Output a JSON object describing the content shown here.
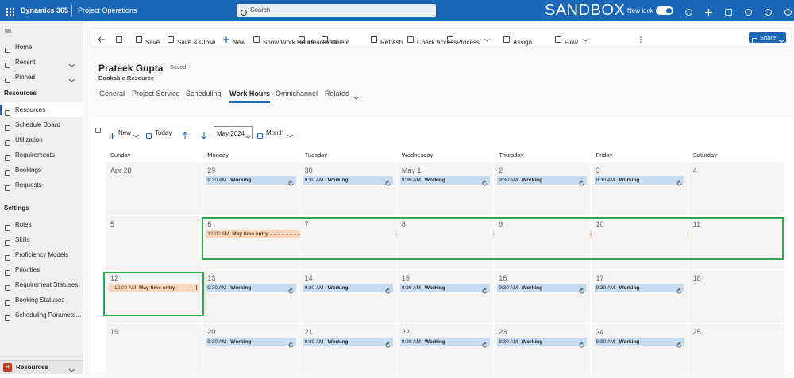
{
  "top_bar": {
    "app": "Dynamics 365",
    "area": "Project Operations",
    "search": "Search",
    "environment": "SANDBOX",
    "new_look": "New look"
  },
  "nav": {
    "items": [
      "Home",
      "Recent",
      "Pinned"
    ],
    "sections": [
      {
        "title": "Resources",
        "items": [
          "Resources",
          "Schedule Board",
          "Utilization",
          "Requirements",
          "Bookings",
          "Requests"
        ]
      },
      {
        "title": "Settings",
        "items": [
          "Roles",
          "Skills",
          "Proficiency Models",
          "Priorities",
          "Requirement Statuses",
          "Booking Statuses",
          "Scheduling Paramete..."
        ]
      }
    ],
    "area_switcher": {
      "badge": "R",
      "label": "Resources"
    }
  },
  "command_bar": {
    "items": [
      "Save",
      "Save & Close",
      "New",
      "Show Work Hours",
      "Deactivate",
      "Delete",
      "Refresh",
      "Check Access",
      "Process",
      "Assign",
      "Flow"
    ],
    "share": "Share"
  },
  "record": {
    "name": "Prateek Gupta",
    "status": "- Saved",
    "entity": "Bookable Resource",
    "tabs": [
      "General",
      "Project Service",
      "Scheduling",
      "Work Hours",
      "Omnichannel",
      "Related"
    ]
  },
  "calendar": {
    "toolbar": {
      "new": "New",
      "today": "Today",
      "period": "May 2024",
      "view": "Month"
    },
    "weekdays": [
      "Sunday",
      "Monday",
      "Tuesday",
      "Wednesday",
      "Thursday",
      "Friday",
      "Saturday"
    ],
    "weeks": [
      [
        {
          "date": "Apr 28",
          "entries": []
        },
        {
          "date": "29",
          "entries": [
            {
              "time": "9:30 AM",
              "title": "Working",
              "days": 1
            }
          ]
        },
        {
          "date": "30",
          "entries": [
            {
              "time": "9:30 AM",
              "title": "Working",
              "days": 1
            }
          ]
        },
        {
          "date": "May 1",
          "entries": [
            {
              "time": "9:30 AM",
              "title": "Working",
              "days": 1
            }
          ]
        },
        {
          "date": "2",
          "entries": [
            {
              "time": "9:30 AM",
              "title": "Working",
              "days": 1
            }
          ]
        },
        {
          "date": "3",
          "entries": [
            {
              "time": "9:30 AM",
              "title": "Working",
              "days": 1
            }
          ]
        },
        {
          "date": "4",
          "entries": []
        }
      ],
      [
        {
          "date": "5",
          "entries": []
        },
        {
          "date": "6",
          "entries": [
            {
              "time": "12:00 AM",
              "title": "May time entry",
              "days": 6
            }
          ]
        },
        {
          "date": "7",
          "entries": []
        },
        {
          "date": "8",
          "entries": []
        },
        {
          "date": "9",
          "entries": []
        },
        {
          "date": "10",
          "entries": []
        },
        {
          "date": "11",
          "entries": []
        }
      ],
      [
        {
          "date": "12",
          "entries": [
            {
              "time": "12:00 AM",
              "title": "May time entry",
              "days": 1
            }
          ]
        },
        {
          "date": "13",
          "entries": [
            {
              "time": "9:30 AM",
              "title": "Working",
              "days": 1
            }
          ]
        },
        {
          "date": "14",
          "entries": [
            {
              "time": "9:30 AM",
              "title": "Working",
              "days": 1
            }
          ]
        },
        {
          "date": "15",
          "entries": [
            {
              "time": "9:30 AM",
              "title": "Working",
              "days": 1
            }
          ]
        },
        {
          "date": "16",
          "entries": [
            {
              "time": "9:30 AM",
              "title": "Working",
              "days": 1
            }
          ]
        },
        {
          "date": "17",
          "entries": [
            {
              "time": "9:30 AM",
              "title": "Working",
              "days": 1
            }
          ]
        },
        {
          "date": "18",
          "entries": []
        }
      ],
      [
        {
          "date": "19",
          "entries": []
        },
        {
          "date": "20",
          "entries": [
            {
              "time": "9:30 AM",
              "title": "Working",
              "days": 1
            }
          ]
        },
        {
          "date": "21",
          "entries": [
            {
              "time": "9:30 AM",
              "title": "Working",
              "days": 1
            }
          ]
        },
        {
          "date": "22",
          "entries": [
            {
              "time": "9:30 AM",
              "title": "Working",
              "days": 1
            }
          ]
        },
        {
          "date": "23",
          "entries": [
            {
              "time": "9:30 AM",
              "title": "Working",
              "days": 1
            }
          ]
        },
        {
          "date": "24",
          "entries": [
            {
              "time": "9:30 AM",
              "title": "Working",
              "days": 1
            }
          ]
        },
        {
          "date": "25",
          "entries": []
        }
      ]
    ]
  }
}
